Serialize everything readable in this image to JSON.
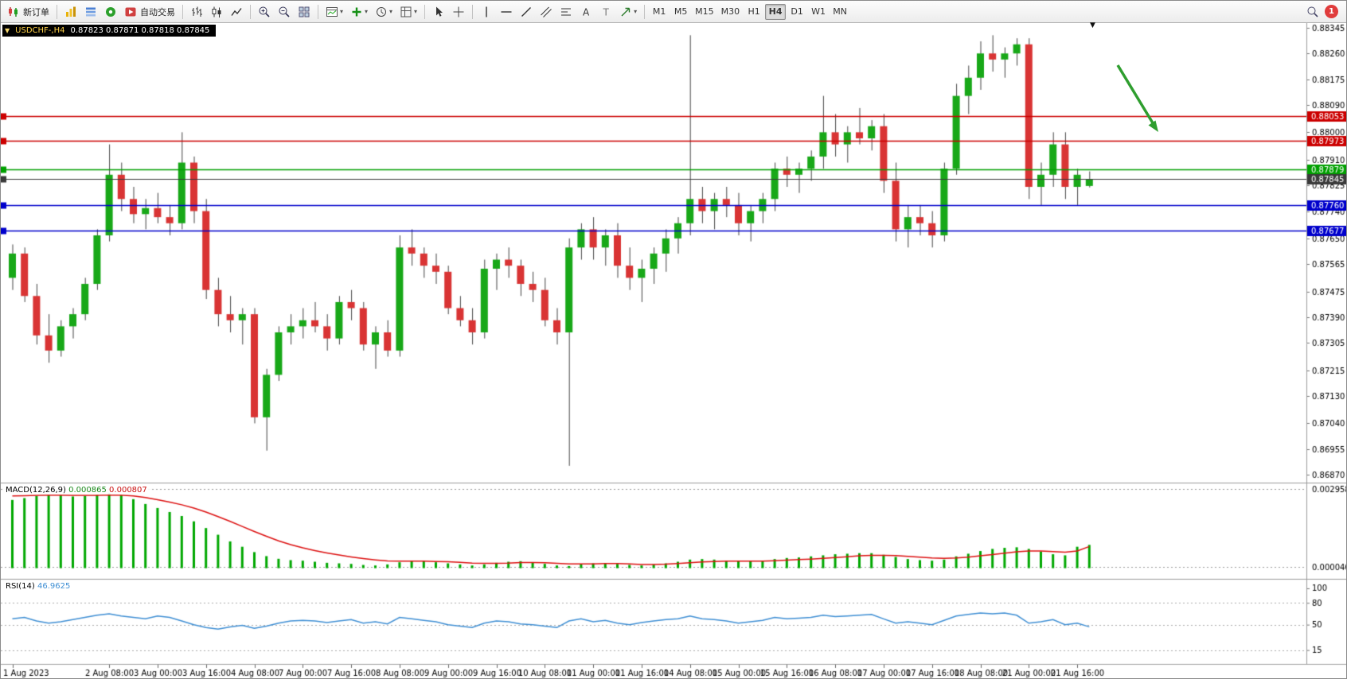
{
  "toolbar": {
    "new_order": "新订单",
    "auto_trading": "自动交易",
    "timeframes": [
      "M1",
      "M5",
      "M15",
      "M30",
      "H1",
      "H4",
      "D1",
      "W1",
      "MN"
    ],
    "active_timeframe": "H4",
    "notification_count": "1"
  },
  "chart_header": {
    "symbol_period": "USDCHF-,H4",
    "ohlc": "0.87823 0.87871 0.87818 0.87845"
  },
  "macd_header": {
    "name": "MACD(12,26,9)",
    "value_main": "0.000865",
    "value_signal": "0.000807"
  },
  "rsi_header": {
    "name": "RSI(14)",
    "value": "46.9625"
  },
  "chart_data": [
    {
      "type": "candlestick",
      "title": "USDCHF H4",
      "ylim": [
        0.86855,
        0.88355
      ],
      "up_color": "#18a818",
      "down_color": "#d93434",
      "wick_color": "#444444",
      "y_ticks": [
        "0.88345",
        "0.88260",
        "0.88175",
        "0.88090",
        "0.88000",
        "0.87910",
        "0.87825",
        "0.87740",
        "0.87650",
        "0.87565",
        "0.87475",
        "0.87390",
        "0.87305",
        "0.87215",
        "0.87130",
        "0.87040",
        "0.86955",
        "0.86870"
      ],
      "hlines": [
        {
          "price": 0.88053,
          "label": "0.88053",
          "color": "#cc0000"
        },
        {
          "price": 0.87973,
          "label": "0.87973",
          "color": "#cc0000"
        },
        {
          "price": 0.87879,
          "label": "0.87879",
          "color": "#00a000"
        },
        {
          "price": 0.87845,
          "label": "0.87845",
          "color": "#3a3a3a",
          "current": true
        },
        {
          "price": 0.8776,
          "label": "0.87760",
          "color": "#0000cc"
        },
        {
          "price": 0.87677,
          "label": "0.87677",
          "color": "#0000cc"
        }
      ],
      "annotation": {
        "type": "arrow",
        "direction": "down-right",
        "color": "#2f9e2f"
      },
      "candles": [
        [
          0.8752,
          0.8763,
          0.8748,
          0.876
        ],
        [
          0.876,
          0.8762,
          0.8744,
          0.8746
        ],
        [
          0.8746,
          0.875,
          0.873,
          0.8733
        ],
        [
          0.8733,
          0.874,
          0.8724,
          0.8728
        ],
        [
          0.8728,
          0.8738,
          0.8726,
          0.8736
        ],
        [
          0.8736,
          0.8742,
          0.8732,
          0.874
        ],
        [
          0.874,
          0.8752,
          0.8738,
          0.875
        ],
        [
          0.875,
          0.8768,
          0.8748,
          0.8766
        ],
        [
          0.8766,
          0.8796,
          0.8764,
          0.8786
        ],
        [
          0.8786,
          0.879,
          0.8774,
          0.8778
        ],
        [
          0.8778,
          0.8782,
          0.877,
          0.8773
        ],
        [
          0.8773,
          0.8778,
          0.8768,
          0.8775
        ],
        [
          0.8775,
          0.878,
          0.877,
          0.8772
        ],
        [
          0.8772,
          0.8776,
          0.8766,
          0.877
        ],
        [
          0.877,
          0.88,
          0.8768,
          0.879
        ],
        [
          0.879,
          0.8792,
          0.877,
          0.8774
        ],
        [
          0.8774,
          0.8778,
          0.8745,
          0.8748
        ],
        [
          0.8748,
          0.8752,
          0.8736,
          0.874
        ],
        [
          0.874,
          0.8746,
          0.8734,
          0.8738
        ],
        [
          0.8738,
          0.8742,
          0.873,
          0.874
        ],
        [
          0.874,
          0.8742,
          0.8704,
          0.8706
        ],
        [
          0.8706,
          0.8722,
          0.8695,
          0.872
        ],
        [
          0.872,
          0.8736,
          0.8718,
          0.8734
        ],
        [
          0.8734,
          0.874,
          0.873,
          0.8736
        ],
        [
          0.8736,
          0.8742,
          0.8732,
          0.8738
        ],
        [
          0.8738,
          0.8744,
          0.8734,
          0.8736
        ],
        [
          0.8736,
          0.874,
          0.8728,
          0.8732
        ],
        [
          0.8732,
          0.8746,
          0.873,
          0.8744
        ],
        [
          0.8744,
          0.8748,
          0.8738,
          0.8742
        ],
        [
          0.8742,
          0.8744,
          0.8728,
          0.873
        ],
        [
          0.873,
          0.8736,
          0.8722,
          0.8734
        ],
        [
          0.8734,
          0.8738,
          0.8726,
          0.8728
        ],
        [
          0.8728,
          0.8766,
          0.8726,
          0.8762
        ],
        [
          0.8762,
          0.8768,
          0.8756,
          0.876
        ],
        [
          0.876,
          0.8762,
          0.8752,
          0.8756
        ],
        [
          0.8756,
          0.876,
          0.875,
          0.8754
        ],
        [
          0.8754,
          0.8756,
          0.874,
          0.8742
        ],
        [
          0.8742,
          0.8746,
          0.8736,
          0.8738
        ],
        [
          0.8738,
          0.8742,
          0.873,
          0.8734
        ],
        [
          0.8734,
          0.8758,
          0.8732,
          0.8755
        ],
        [
          0.8755,
          0.876,
          0.8748,
          0.8758
        ],
        [
          0.8758,
          0.8762,
          0.8752,
          0.8756
        ],
        [
          0.8756,
          0.8758,
          0.8746,
          0.875
        ],
        [
          0.875,
          0.8754,
          0.8744,
          0.8748
        ],
        [
          0.8748,
          0.8752,
          0.8736,
          0.8738
        ],
        [
          0.8738,
          0.8742,
          0.873,
          0.8734
        ],
        [
          0.8734,
          0.8765,
          0.869,
          0.8762
        ],
        [
          0.8762,
          0.877,
          0.8758,
          0.8768
        ],
        [
          0.8768,
          0.8772,
          0.8758,
          0.8762
        ],
        [
          0.8762,
          0.8768,
          0.8756,
          0.8766
        ],
        [
          0.8766,
          0.877,
          0.8752,
          0.8756
        ],
        [
          0.8756,
          0.8762,
          0.8748,
          0.8752
        ],
        [
          0.8752,
          0.8758,
          0.8744,
          0.8755
        ],
        [
          0.8755,
          0.8762,
          0.875,
          0.876
        ],
        [
          0.876,
          0.8768,
          0.8754,
          0.8765
        ],
        [
          0.8765,
          0.8772,
          0.876,
          0.877
        ],
        [
          0.877,
          0.8832,
          0.8766,
          0.8778
        ],
        [
          0.8778,
          0.8782,
          0.877,
          0.8774
        ],
        [
          0.8774,
          0.878,
          0.8768,
          0.8778
        ],
        [
          0.8778,
          0.8782,
          0.8772,
          0.8776
        ],
        [
          0.8776,
          0.878,
          0.8766,
          0.877
        ],
        [
          0.877,
          0.8776,
          0.8764,
          0.8774
        ],
        [
          0.8774,
          0.878,
          0.877,
          0.8778
        ],
        [
          0.8778,
          0.879,
          0.8774,
          0.8788
        ],
        [
          0.8788,
          0.8792,
          0.8782,
          0.8786
        ],
        [
          0.8786,
          0.879,
          0.878,
          0.8788
        ],
        [
          0.8788,
          0.8794,
          0.8784,
          0.8792
        ],
        [
          0.8792,
          0.8812,
          0.8788,
          0.88
        ],
        [
          0.88,
          0.8806,
          0.8792,
          0.8796
        ],
        [
          0.8796,
          0.8802,
          0.879,
          0.88
        ],
        [
          0.88,
          0.8808,
          0.8796,
          0.8798
        ],
        [
          0.8798,
          0.8804,
          0.8794,
          0.8802
        ],
        [
          0.8802,
          0.8806,
          0.878,
          0.8784
        ],
        [
          0.8784,
          0.879,
          0.8764,
          0.8768
        ],
        [
          0.8768,
          0.8776,
          0.8762,
          0.8772
        ],
        [
          0.8772,
          0.8776,
          0.8766,
          0.877
        ],
        [
          0.877,
          0.8774,
          0.8762,
          0.8766
        ],
        [
          0.8766,
          0.879,
          0.8764,
          0.8788
        ],
        [
          0.8788,
          0.8816,
          0.8786,
          0.8812
        ],
        [
          0.8812,
          0.8822,
          0.8806,
          0.8818
        ],
        [
          0.8818,
          0.883,
          0.8814,
          0.8826
        ],
        [
          0.8826,
          0.8832,
          0.882,
          0.8824
        ],
        [
          0.8824,
          0.8828,
          0.8818,
          0.8826
        ],
        [
          0.8826,
          0.8831,
          0.8822,
          0.8829
        ],
        [
          0.8829,
          0.8831,
          0.8778,
          0.8782
        ],
        [
          0.8782,
          0.879,
          0.8776,
          0.8786
        ],
        [
          0.8786,
          0.88,
          0.8782,
          0.8796
        ],
        [
          0.8796,
          0.88,
          0.8778,
          0.8782
        ],
        [
          0.8782,
          0.8788,
          0.8776,
          0.8786
        ],
        [
          0.87823,
          0.87871,
          0.87818,
          0.87845
        ]
      ]
    },
    {
      "type": "bar",
      "title": "MACD(12,26,9)",
      "ylim": [
        -0.00025,
        0.00308
      ],
      "bar_color": "#00a800",
      "line_color": "#dd1111",
      "y_ticks": [
        "0.002958",
        "0.000046"
      ],
      "values": [
        0.00255,
        0.00262,
        0.0027,
        0.00275,
        0.00272,
        0.00268,
        0.0027,
        0.00274,
        0.0028,
        0.00272,
        0.00258,
        0.0024,
        0.00225,
        0.0021,
        0.00195,
        0.00175,
        0.0015,
        0.00125,
        0.001,
        0.0008,
        0.0006,
        0.00045,
        0.00035,
        0.0003,
        0.00028,
        0.00024,
        0.0002,
        0.00018,
        0.00016,
        0.00012,
        0.0001,
        0.00014,
        0.00022,
        0.00026,
        0.00026,
        0.00022,
        0.00018,
        0.00014,
        0.0001,
        0.00014,
        0.0002,
        0.00024,
        0.00026,
        0.00022,
        0.00016,
        0.0001,
        8e-05,
        0.00016,
        0.00018,
        0.00018,
        0.00016,
        0.00012,
        0.0001,
        0.00014,
        0.00018,
        0.00024,
        0.00032,
        0.00034,
        0.00032,
        0.00028,
        0.00026,
        0.00026,
        0.00028,
        0.00034,
        0.00038,
        0.0004,
        0.00044,
        0.00048,
        0.00052,
        0.00054,
        0.00056,
        0.00056,
        0.0005,
        0.00042,
        0.00034,
        0.0003,
        0.00028,
        0.00032,
        0.00044,
        0.00054,
        0.00064,
        0.00072,
        0.00076,
        0.00078,
        0.00072,
        0.00062,
        0.00052,
        0.00048,
        0.0008,
        0.00087
      ],
      "signal": [
        0.0027,
        0.00271,
        0.00272,
        0.00273,
        0.00273,
        0.00272,
        0.00272,
        0.00272,
        0.00274,
        0.00273,
        0.0027,
        0.00264,
        0.00256,
        0.00247,
        0.00237,
        0.00225,
        0.0021,
        0.00193,
        0.00175,
        0.00156,
        0.00137,
        0.00119,
        0.00102,
        0.00088,
        0.00076,
        0.00066,
        0.00057,
        0.00049,
        0.00042,
        0.00036,
        0.00031,
        0.00027,
        0.00026,
        0.00026,
        0.00026,
        0.00025,
        0.00024,
        0.00022,
        0.00019,
        0.00018,
        0.00018,
        0.00019,
        0.00021,
        0.00021,
        0.0002,
        0.00018,
        0.00016,
        0.00016,
        0.00016,
        0.00017,
        0.00017,
        0.00016,
        0.00014,
        0.00014,
        0.00015,
        0.00017,
        0.0002,
        0.00023,
        0.00025,
        0.00026,
        0.00026,
        0.00026,
        0.00026,
        0.00028,
        0.0003,
        0.00032,
        0.00034,
        0.00037,
        0.0004,
        0.00043,
        0.00046,
        0.00048,
        0.00048,
        0.00047,
        0.00044,
        0.00041,
        0.00038,
        0.00037,
        0.00038,
        0.00041,
        0.00046,
        0.00051,
        0.00056,
        0.00061,
        0.00064,
        0.00064,
        0.00062,
        0.0006,
        0.00064,
        0.00081
      ]
    },
    {
      "type": "line",
      "title": "RSI(14)",
      "ylim": [
        -4,
        112
      ],
      "line_color": "#3f8fd4",
      "levels": [
        80,
        50,
        15
      ],
      "y_ticks": [
        "100",
        "80",
        "50",
        "15"
      ],
      "values": [
        58,
        60,
        55,
        52,
        54,
        57,
        60,
        63,
        65,
        62,
        60,
        58,
        62,
        60,
        55,
        50,
        46,
        44,
        47,
        49,
        45,
        48,
        52,
        55,
        56,
        55,
        53,
        55,
        57,
        52,
        54,
        51,
        60,
        58,
        56,
        54,
        50,
        48,
        46,
        52,
        55,
        54,
        51,
        50,
        48,
        46,
        55,
        58,
        54,
        56,
        52,
        50,
        53,
        55,
        57,
        58,
        62,
        58,
        57,
        55,
        52,
        54,
        56,
        60,
        58,
        59,
        60,
        63,
        61,
        62,
        63,
        64,
        58,
        52,
        54,
        52,
        50,
        56,
        62,
        64,
        66,
        65,
        66,
        63,
        52,
        54,
        57,
        50,
        52,
        47
      ]
    }
  ],
  "time_axis": {
    "labels": [
      "1 Aug 2023",
      "2 Aug 08:00",
      "3 Aug 00:00",
      "3 Aug 16:00",
      "4 Aug 08:00",
      "7 Aug 00:00",
      "7 Aug 16:00",
      "8 Aug 08:00",
      "9 Aug 00:00",
      "9 Aug 16:00",
      "10 Aug 08:00",
      "11 Aug 00:00",
      "11 Aug 16:00",
      "14 Aug 08:00",
      "15 Aug 00:00",
      "15 Aug 16:00",
      "16 Aug 08:00",
      "17 Aug 00:00",
      "17 Aug 16:00",
      "18 Aug 08:00",
      "21 Aug 00:00",
      "21 Aug 16:00"
    ],
    "tick_indices": [
      0,
      8,
      12,
      16,
      20,
      24,
      28,
      32,
      36,
      40,
      44,
      48,
      52,
      56,
      60,
      64,
      68,
      72,
      76,
      80,
      84,
      88
    ]
  }
}
